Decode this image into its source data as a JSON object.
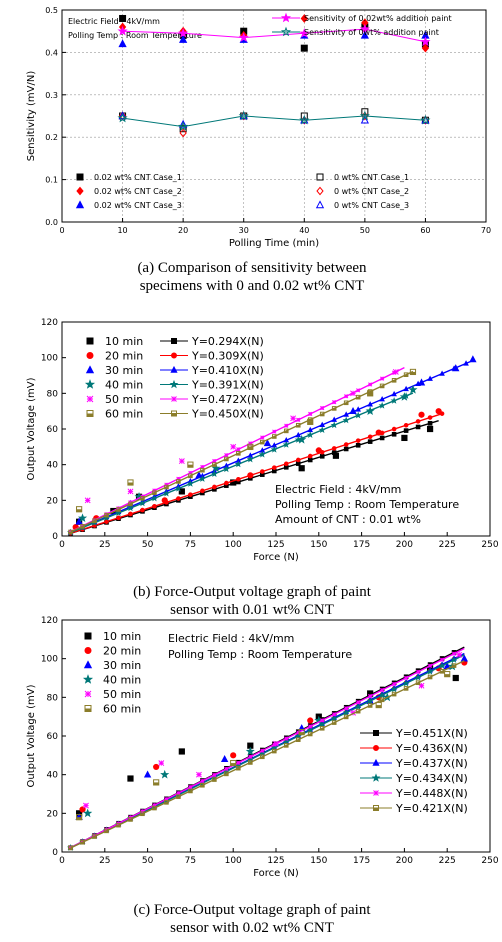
{
  "chart_data": [
    {
      "type": "scatter",
      "xlabel": "Polling Time (min)",
      "ylabel": "Sensitivity (mV/N)",
      "xlim": [
        0,
        70
      ],
      "ylim": [
        0.0,
        0.5
      ],
      "xticks": [
        "0",
        "10",
        "20",
        "30",
        "40",
        "50",
        "60",
        "70"
      ],
      "yticks": [
        "0.0",
        "0.1",
        "0.2",
        "0.3",
        "0.4",
        "0.5"
      ],
      "grid": true,
      "annotations": [
        "Electric Field : 4kV/mm",
        "Polling Temp : Room Temperature"
      ],
      "caption": [
        "(a) Comparison of sensitivity between",
        "specimens with 0 and 0.02 wt% CNT"
      ],
      "x": [
        10,
        20,
        30,
        40,
        50,
        60
      ],
      "series": [
        {
          "name": "0.02 wt% CNT Case_1",
          "marker": "square",
          "filled": true,
          "color": "#000000",
          "values": [
            0.48,
            0.44,
            0.45,
            0.41,
            0.46,
            0.42
          ]
        },
        {
          "name": "0.02 wt% CNT Case_2",
          "marker": "diamond",
          "filled": true,
          "color": "#ff0000",
          "values": [
            0.46,
            0.45,
            0.44,
            0.48,
            0.47,
            0.41
          ]
        },
        {
          "name": "0.02 wt% CNT Case_3",
          "marker": "triangle",
          "filled": true,
          "color": "#0000ff",
          "values": [
            0.42,
            0.43,
            0.43,
            0.44,
            0.44,
            0.44
          ]
        },
        {
          "name": "0 wt% CNT Case_1",
          "marker": "square",
          "filled": false,
          "color": "#000000",
          "values": [
            0.25,
            0.22,
            0.25,
            0.25,
            0.26,
            0.24
          ]
        },
        {
          "name": "0 wt% CNT Case_2",
          "marker": "diamond",
          "filled": false,
          "color": "#ff0000",
          "values": [
            0.25,
            0.21,
            0.25,
            0.24,
            0.25,
            0.24
          ]
        },
        {
          "name": "0 wt% CNT Case_3",
          "marker": "triangle",
          "filled": false,
          "color": "#0000ff",
          "values": [
            0.25,
            0.23,
            0.25,
            0.24,
            0.24,
            0.24
          ]
        },
        {
          "name": "Sensitivity of 0.02wt% addition paint",
          "marker": "star",
          "line": true,
          "color": "#ff00ff",
          "values": [
            0.45,
            0.445,
            0.435,
            0.445,
            0.455,
            0.425
          ]
        },
        {
          "name": "Sensitivity of 0wt% addition paint",
          "marker": "star-open",
          "line": true,
          "color": "#007878",
          "values": [
            0.245,
            0.225,
            0.25,
            0.24,
            0.25,
            0.24
          ]
        }
      ]
    },
    {
      "type": "scatter",
      "xlabel": "Force (N)",
      "ylabel": "Output Voltage (mV)",
      "xlim": [
        0,
        250
      ],
      "ylim": [
        0,
        120
      ],
      "xticks": [
        "0",
        "25",
        "50",
        "75",
        "100",
        "125",
        "150",
        "175",
        "200",
        "225",
        "250"
      ],
      "yticks": [
        "0",
        "20",
        "40",
        "60",
        "80",
        "100",
        "120"
      ],
      "annotations": [
        "Electric Field : 4kV/mm",
        "Polling Temp : Room Temperature",
        "Amount of CNT : 0.01 wt%"
      ],
      "caption": [
        "(b) Force-Output voltage graph of paint",
        "sensor with 0.01 wt% CNT"
      ],
      "series": [
        {
          "name": "10 min",
          "fit": "Y=0.294X(N)",
          "slope": 0.294,
          "marker": "square",
          "color": "#000000",
          "xmax": 220,
          "points": [
            [
              10,
              8
            ],
            [
              30,
              14
            ],
            [
              45,
              22
            ],
            [
              70,
              25
            ],
            [
              100,
              30
            ],
            [
              140,
              38
            ],
            [
              160,
              45
            ],
            [
              200,
              55
            ],
            [
              215,
              60
            ]
          ]
        },
        {
          "name": "20 min",
          "fit": "Y=0.309X(N)",
          "slope": 0.309,
          "marker": "circle",
          "color": "#ff0000",
          "xmax": 222,
          "points": [
            [
              8,
              5
            ],
            [
              20,
              10
            ],
            [
              60,
              20
            ],
            [
              110,
              34
            ],
            [
              150,
              48
            ],
            [
              185,
              58
            ],
            [
              210,
              68
            ],
            [
              220,
              70
            ]
          ]
        },
        {
          "name": "30 min",
          "fit": "Y=0.410X(N)",
          "slope": 0.41,
          "marker": "triangle",
          "color": "#0000ff",
          "xmax": 240,
          "points": [
            [
              10,
              8
            ],
            [
              40,
              18
            ],
            [
              80,
              34
            ],
            [
              120,
              52
            ],
            [
              170,
              70
            ],
            [
              210,
              86
            ],
            [
              230,
              94
            ],
            [
              240,
              99
            ]
          ]
        },
        {
          "name": "40 min",
          "fit": "Y=0.391X(N)",
          "slope": 0.391,
          "marker": "star",
          "color": "#007878",
          "xmax": 205,
          "points": [
            [
              12,
              10
            ],
            [
              45,
              22
            ],
            [
              90,
              38
            ],
            [
              140,
              54
            ],
            [
              180,
              70
            ],
            [
              200,
              78
            ],
            [
              205,
              82
            ]
          ]
        },
        {
          "name": "50 min",
          "fit": "Y=0.472X(N)",
          "slope": 0.472,
          "marker": "x",
          "color": "#ff00ff",
          "xmax": 200,
          "points": [
            [
              15,
              20
            ],
            [
              40,
              25
            ],
            [
              70,
              42
            ],
            [
              100,
              50
            ],
            [
              135,
              66
            ],
            [
              170,
              80
            ],
            [
              195,
              92
            ]
          ]
        },
        {
          "name": "60 min",
          "fit": "Y=0.450X(N)",
          "slope": 0.45,
          "marker": "halfsquare",
          "color": "#8b7d2a",
          "xmax": 205,
          "points": [
            [
              10,
              15
            ],
            [
              40,
              30
            ],
            [
              75,
              40
            ],
            [
              110,
              50
            ],
            [
              145,
              64
            ],
            [
              180,
              80
            ],
            [
              205,
              92
            ]
          ]
        }
      ]
    },
    {
      "type": "scatter",
      "xlabel": "Force (N)",
      "ylabel": "Output Voltage (mV)",
      "xlim": [
        0,
        250
      ],
      "ylim": [
        0,
        120
      ],
      "xticks": [
        "0",
        "25",
        "50",
        "75",
        "100",
        "125",
        "150",
        "175",
        "200",
        "225",
        "250"
      ],
      "yticks": [
        "0",
        "20",
        "40",
        "60",
        "80",
        "100",
        "120"
      ],
      "annotations": [
        "Electric Field : 4kV/mm",
        "Polling Temp : Room Temperature"
      ],
      "caption": [
        "(c) Force-Output voltage graph of paint",
        "sensor with 0.02 wt% CNT"
      ],
      "series": [
        {
          "name": "10 min",
          "fit": "Y=0.451X(N)",
          "slope": 0.451,
          "marker": "square",
          "color": "#000000",
          "xmax": 235,
          "points": [
            [
              10,
              20
            ],
            [
              40,
              38
            ],
            [
              70,
              52
            ],
            [
              110,
              55
            ],
            [
              150,
              70
            ],
            [
              180,
              82
            ],
            [
              215,
              95
            ],
            [
              230,
              90
            ]
          ]
        },
        {
          "name": "20 min",
          "fit": "Y=0.436X(N)",
          "slope": 0.436,
          "marker": "circle",
          "color": "#ff0000",
          "xmax": 235,
          "points": [
            [
              12,
              22
            ],
            [
              55,
              44
            ],
            [
              100,
              50
            ],
            [
              145,
              68
            ],
            [
              185,
              80
            ],
            [
              220,
              95
            ],
            [
              235,
              98
            ]
          ]
        },
        {
          "name": "30 min",
          "fit": "Y=0.437X(N)",
          "slope": 0.437,
          "marker": "triangle",
          "color": "#0000ff",
          "xmax": 235,
          "points": [
            [
              10,
              18
            ],
            [
              50,
              40
            ],
            [
              95,
              48
            ],
            [
              140,
              64
            ],
            [
              180,
              78
            ],
            [
              225,
              96
            ],
            [
              235,
              100
            ]
          ]
        },
        {
          "name": "40 min",
          "fit": "Y=0.434X(N)",
          "slope": 0.434,
          "marker": "star",
          "color": "#007878",
          "xmax": 235,
          "points": [
            [
              15,
              20
            ],
            [
              60,
              40
            ],
            [
              110,
              52
            ],
            [
              150,
              68
            ],
            [
              190,
              80
            ],
            [
              228,
              96
            ]
          ]
        },
        {
          "name": "50 min",
          "fit": "Y=0.448X(N)",
          "slope": 0.448,
          "marker": "x",
          "color": "#ff00ff",
          "xmax": 235,
          "points": [
            [
              14,
              24
            ],
            [
              58,
              46
            ],
            [
              80,
              40
            ],
            [
              125,
              56
            ],
            [
              170,
              72
            ],
            [
              210,
              86
            ],
            [
              232,
              102
            ]
          ]
        },
        {
          "name": "60 min",
          "fit": "Y=0.421X(N)",
          "slope": 0.421,
          "marker": "halfsquare",
          "color": "#8b7d2a",
          "xmax": 235,
          "points": [
            [
              10,
              18
            ],
            [
              55,
              36
            ],
            [
              100,
              46
            ],
            [
              140,
              62
            ],
            [
              185,
              76
            ],
            [
              225,
              92
            ]
          ]
        }
      ]
    }
  ]
}
